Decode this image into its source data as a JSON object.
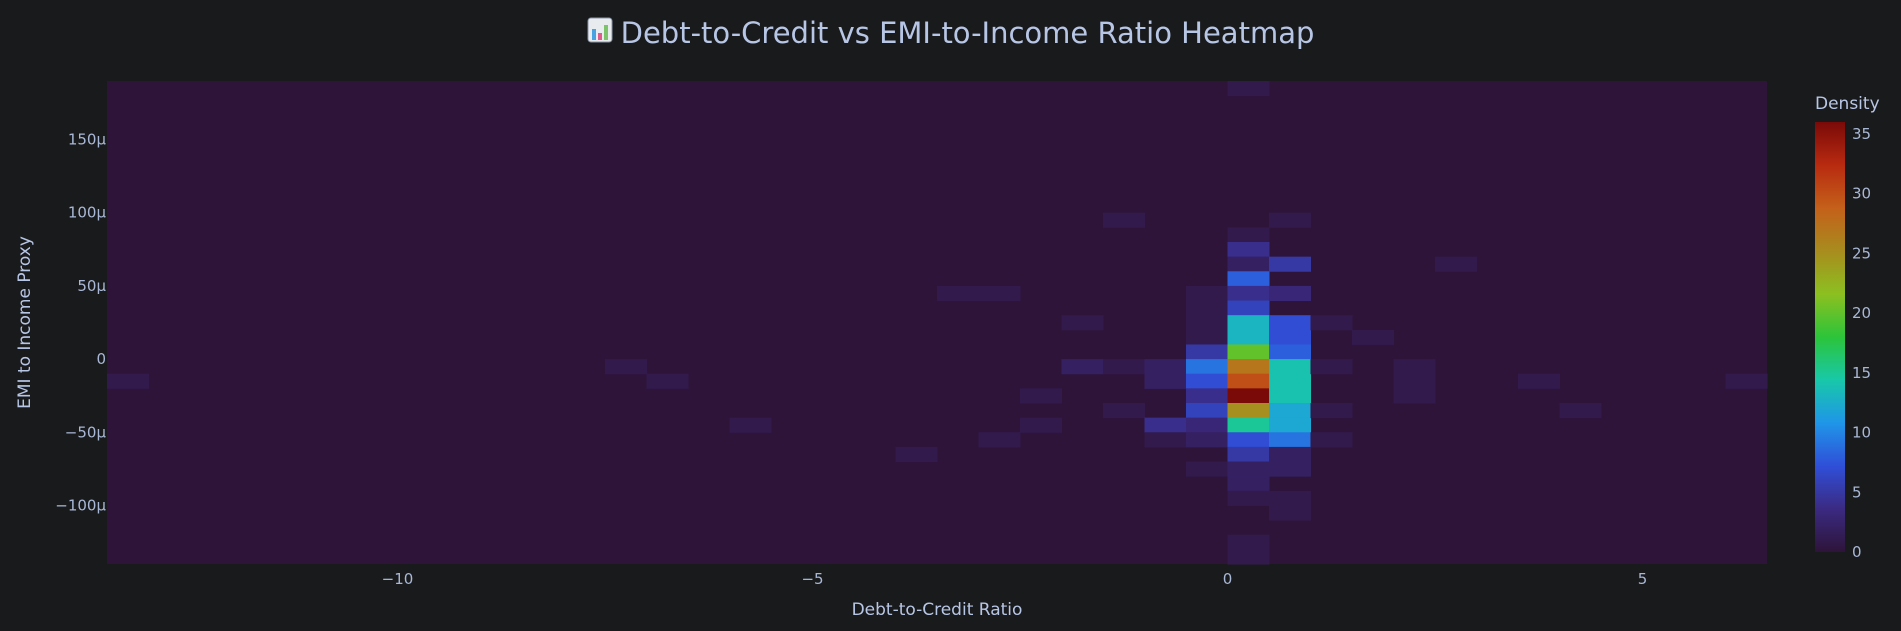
{
  "title_text": "Debt-to-Credit vs EMI-to-Income Ratio Heatmap",
  "title_icon": "bar-chart-icon",
  "colors": {
    "page_bg": "#191a1c",
    "plot_bg": "#2e1439",
    "text": "#b8c6e6",
    "tick_text": "#a9b8d6"
  },
  "chart_data": {
    "type": "heatmap",
    "title": "Debt-to-Credit vs EMI-to-Income Ratio Heatmap",
    "xlabel": "Debt-to-Credit Ratio",
    "ylabel": "EMI to Income Proxy",
    "xlim": [
      -13.5,
      6.5
    ],
    "ylim": [
      -140,
      190
    ],
    "x_units": "ratio",
    "y_units": "µ (×1e-6)",
    "x_ticks": [
      -10,
      -5,
      0,
      5
    ],
    "x_tick_labels": [
      "−10",
      "−5",
      "0",
      "5"
    ],
    "y_ticks": [
      -100,
      -50,
      0,
      50,
      100,
      150
    ],
    "y_tick_labels": [
      "−100µ",
      "−50µ",
      "0",
      "50µ",
      "100µ",
      "150µ"
    ],
    "bin_width_x": 0.5,
    "bin_height_y": 10,
    "colorbar": {
      "title": "Density",
      "min": 0,
      "max": 36,
      "ticks": [
        0,
        5,
        10,
        15,
        20,
        25,
        30,
        35
      ],
      "colorscale": "turbo-dark",
      "stops": [
        "#2e1439",
        "#3b2a82",
        "#2f4fd8",
        "#1f96e8",
        "#18c8a8",
        "#2cc43a",
        "#8cc020",
        "#a88c1e",
        "#c4601a",
        "#b82a10",
        "#7a0a08"
      ]
    },
    "cells": [
      {
        "x": -13.25,
        "y": -15,
        "z": 1
      },
      {
        "x": -7.25,
        "y": -5,
        "z": 1
      },
      {
        "x": -6.75,
        "y": -15,
        "z": 1
      },
      {
        "x": -5.75,
        "y": -45,
        "z": 1
      },
      {
        "x": -3.75,
        "y": -65,
        "z": 1
      },
      {
        "x": -3.25,
        "y": 45,
        "z": 1
      },
      {
        "x": -2.75,
        "y": 45,
        "z": 1
      },
      {
        "x": -2.75,
        "y": -55,
        "z": 1
      },
      {
        "x": -2.25,
        "y": -25,
        "z": 1
      },
      {
        "x": -2.25,
        "y": -45,
        "z": 1
      },
      {
        "x": -1.75,
        "y": 25,
        "z": 1
      },
      {
        "x": -1.75,
        "y": -5,
        "z": 2
      },
      {
        "x": -1.25,
        "y": 95,
        "z": 1
      },
      {
        "x": -1.25,
        "y": -5,
        "z": 1
      },
      {
        "x": -1.25,
        "y": -35,
        "z": 1
      },
      {
        "x": -0.75,
        "y": -5,
        "z": 2
      },
      {
        "x": -0.75,
        "y": -15,
        "z": 2
      },
      {
        "x": -0.75,
        "y": -45,
        "z": 4
      },
      {
        "x": -0.75,
        "y": -55,
        "z": 1
      },
      {
        "x": -0.25,
        "y": 45,
        "z": 1
      },
      {
        "x": -0.25,
        "y": 35,
        "z": 1
      },
      {
        "x": -0.25,
        "y": 25,
        "z": 1
      },
      {
        "x": -0.25,
        "y": 15,
        "z": 1
      },
      {
        "x": -0.25,
        "y": 5,
        "z": 5
      },
      {
        "x": -0.25,
        "y": -5,
        "z": 9
      },
      {
        "x": -0.25,
        "y": -15,
        "z": 7
      },
      {
        "x": -0.25,
        "y": -25,
        "z": 4
      },
      {
        "x": -0.25,
        "y": -35,
        "z": 6
      },
      {
        "x": -0.25,
        "y": -45,
        "z": 3
      },
      {
        "x": -0.25,
        "y": -55,
        "z": 2
      },
      {
        "x": -0.25,
        "y": -75,
        "z": 1
      },
      {
        "x": 0.25,
        "y": 185,
        "z": 1
      },
      {
        "x": 0.25,
        "y": 85,
        "z": 1
      },
      {
        "x": 0.25,
        "y": 75,
        "z": 4
      },
      {
        "x": 0.25,
        "y": 65,
        "z": 2
      },
      {
        "x": 0.25,
        "y": 55,
        "z": 8
      },
      {
        "x": 0.25,
        "y": 45,
        "z": 4
      },
      {
        "x": 0.25,
        "y": 35,
        "z": 6
      },
      {
        "x": 0.25,
        "y": 25,
        "z": 13
      },
      {
        "x": 0.25,
        "y": 15,
        "z": 13
      },
      {
        "x": 0.25,
        "y": 5,
        "z": 20
      },
      {
        "x": 0.25,
        "y": -5,
        "z": 27
      },
      {
        "x": 0.25,
        "y": -15,
        "z": 30
      },
      {
        "x": 0.25,
        "y": -25,
        "z": 36
      },
      {
        "x": 0.25,
        "y": -35,
        "z": 25
      },
      {
        "x": 0.25,
        "y": -45,
        "z": 15
      },
      {
        "x": 0.25,
        "y": -55,
        "z": 7
      },
      {
        "x": 0.25,
        "y": -65,
        "z": 5
      },
      {
        "x": 0.25,
        "y": -75,
        "z": 2
      },
      {
        "x": 0.25,
        "y": -85,
        "z": 2
      },
      {
        "x": 0.25,
        "y": -95,
        "z": 1
      },
      {
        "x": 0.25,
        "y": -125,
        "z": 1
      },
      {
        "x": 0.25,
        "y": -135,
        "z": 1
      },
      {
        "x": 0.75,
        "y": 95,
        "z": 1
      },
      {
        "x": 0.75,
        "y": 65,
        "z": 5
      },
      {
        "x": 0.75,
        "y": 45,
        "z": 3
      },
      {
        "x": 0.75,
        "y": 25,
        "z": 7
      },
      {
        "x": 0.75,
        "y": 15,
        "z": 7
      },
      {
        "x": 0.75,
        "y": 5,
        "z": 8
      },
      {
        "x": 0.75,
        "y": -5,
        "z": 14
      },
      {
        "x": 0.75,
        "y": -15,
        "z": 14
      },
      {
        "x": 0.75,
        "y": -25,
        "z": 14
      },
      {
        "x": 0.75,
        "y": -35,
        "z": 12
      },
      {
        "x": 0.75,
        "y": -45,
        "z": 12
      },
      {
        "x": 0.75,
        "y": -55,
        "z": 9
      },
      {
        "x": 0.75,
        "y": -65,
        "z": 2
      },
      {
        "x": 0.75,
        "y": -75,
        "z": 2
      },
      {
        "x": 0.75,
        "y": -95,
        "z": 1
      },
      {
        "x": 0.75,
        "y": -105,
        "z": 1
      },
      {
        "x": 1.25,
        "y": 25,
        "z": 1
      },
      {
        "x": 1.25,
        "y": -5,
        "z": 1
      },
      {
        "x": 1.25,
        "y": -35,
        "z": 1
      },
      {
        "x": 1.25,
        "y": -55,
        "z": 1
      },
      {
        "x": 1.75,
        "y": 15,
        "z": 1
      },
      {
        "x": 2.25,
        "y": -5,
        "z": 1
      },
      {
        "x": 2.25,
        "y": -15,
        "z": 1
      },
      {
        "x": 2.25,
        "y": -25,
        "z": 1
      },
      {
        "x": 2.75,
        "y": 65,
        "z": 1
      },
      {
        "x": 3.75,
        "y": -15,
        "z": 1
      },
      {
        "x": 4.25,
        "y": -35,
        "z": 1
      },
      {
        "x": 6.25,
        "y": -15,
        "z": 1
      }
    ]
  }
}
